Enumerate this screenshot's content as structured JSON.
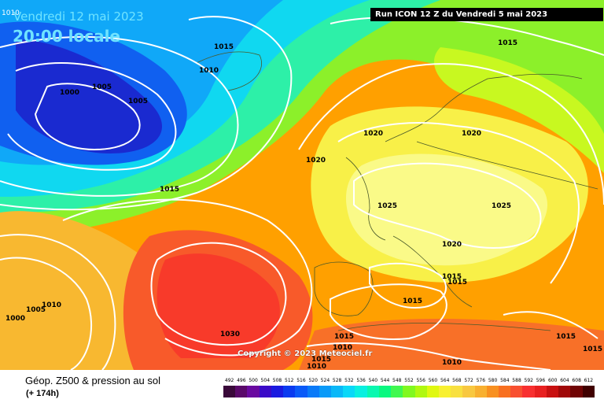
{
  "header": {
    "date_prefix": "1010",
    "date": "Vendredi 12 mai 2023",
    "time": "20:00 locale",
    "run": "Run ICON 12 Z du Vendredi 5 mai 2023"
  },
  "copyright": "Copyright © 2023 Meteociel.fr",
  "footer": {
    "title": "Géop. Z500 & pression au sol",
    "subtitle": "(+ 174h)"
  },
  "scale": {
    "labels": [
      "492",
      "496",
      "500",
      "504",
      "508",
      "512",
      "516",
      "520",
      "524",
      "528",
      "532",
      "536",
      "540",
      "544",
      "548",
      "552",
      "556",
      "560",
      "564",
      "568",
      "572",
      "576",
      "580",
      "584",
      "588",
      "592",
      "596",
      "600",
      "604",
      "608",
      "612"
    ],
    "colors": [
      "#3a0a3a",
      "#5a0a6a",
      "#6a0aa0",
      "#3a0ac8",
      "#1a1ae0",
      "#0a3af0",
      "#0a5af8",
      "#0a7af8",
      "#0a9af8",
      "#0ab8f8",
      "#0ad8f8",
      "#0af0e0",
      "#0af8b0",
      "#0af880",
      "#40f850",
      "#80f820",
      "#b0f810",
      "#e0f810",
      "#f8f030",
      "#f8e040",
      "#f8c840",
      "#f8b030",
      "#f89020",
      "#f87020",
      "#f85030",
      "#f83030",
      "#e82020",
      "#c81010",
      "#a00808",
      "#700404",
      "#400000"
    ]
  },
  "isobars": [
    {
      "id": "1000",
      "text": "1000"
    },
    {
      "id": "1005a",
      "text": "1005"
    },
    {
      "id": "1005b",
      "text": "1005"
    },
    {
      "id": "1010a",
      "text": "1010"
    },
    {
      "id": "1015a",
      "text": "1015"
    },
    {
      "id": "1015b",
      "text": "1015"
    },
    {
      "id": "1015c",
      "text": "1015"
    },
    {
      "id": "1020a",
      "text": "1020"
    },
    {
      "id": "1020b",
      "text": "1020"
    },
    {
      "id": "1020c",
      "text": "1020"
    },
    {
      "id": "1025a",
      "text": "1025"
    },
    {
      "id": "1025b",
      "text": "1025"
    },
    {
      "id": "1020d",
      "text": "1020"
    },
    {
      "id": "1015d",
      "text": "1015"
    },
    {
      "id": "1015e",
      "text": "1015"
    },
    {
      "id": "1015f",
      "text": "1015"
    },
    {
      "id": "1010b",
      "text": "1010"
    },
    {
      "id": "1005c",
      "text": "1005"
    },
    {
      "id": "1000b",
      "text": "1000"
    },
    {
      "id": "1030",
      "text": "1030"
    },
    {
      "id": "1015g",
      "text": "1015"
    },
    {
      "id": "1010c",
      "text": "1010"
    },
    {
      "id": "1010d",
      "text": "1010"
    },
    {
      "id": "1015h",
      "text": "1015"
    },
    {
      "id": "1015i",
      "text": "1015"
    },
    {
      "id": "1015j",
      "text": "1015"
    },
    {
      "id": "1010e",
      "text": "1010"
    }
  ]
}
